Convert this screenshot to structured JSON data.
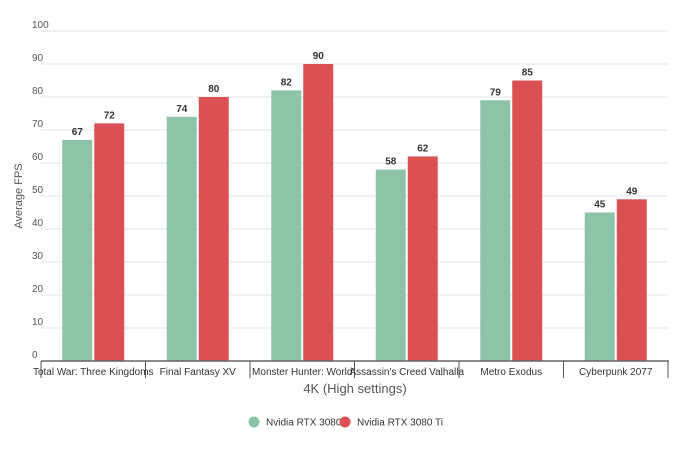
{
  "chart_data": {
    "type": "bar",
    "title": "",
    "xlabel": "4K (High settings)",
    "ylabel": "Average FPS",
    "ylim": [
      0,
      100
    ],
    "yticks": [
      0,
      10,
      20,
      30,
      40,
      50,
      60,
      70,
      80,
      90,
      100
    ],
    "grid": true,
    "legend_position": "bottom",
    "categories": [
      "Total War: Three Kingdoms",
      "Final Fantasy XV",
      "Monster Hunter: World",
      "Assassin's Creed Valhalla",
      "Metro Exodus",
      "Cyberpunk 2077"
    ],
    "series": [
      {
        "name": "Nvidia RTX 3080",
        "color": "#8dc3a7",
        "values": [
          67,
          74,
          82,
          58,
          79,
          45
        ]
      },
      {
        "name": "Nvidia RTX 3080 Ti",
        "color": "#db5153",
        "values": [
          72,
          80,
          90,
          62,
          85,
          49
        ]
      }
    ]
  }
}
